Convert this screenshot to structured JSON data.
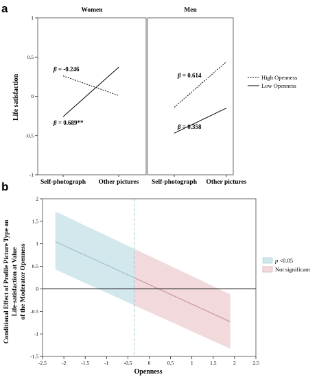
{
  "chart_data": [
    {
      "panel": "a",
      "type": "line",
      "facets": [
        {
          "title": "Women",
          "series": [
            {
              "name": "High Openness",
              "values": [
                0.26,
                0.01
              ]
            },
            {
              "name": "Low Openness",
              "values": [
                -0.26,
                0.37
              ]
            }
          ],
          "annotations": [
            {
              "text": "β = -0.246",
              "series": "High Openness",
              "coef": "-0.246"
            },
            {
              "text": "β = 0.689**",
              "series": "Low Openness",
              "coef": "0.689**"
            }
          ]
        },
        {
          "title": "Men",
          "series": [
            {
              "name": "High Openness",
              "values": [
                -0.14,
                0.44
              ]
            },
            {
              "name": "Low Openness",
              "values": [
                -0.47,
                -0.15
              ]
            }
          ],
          "annotations": [
            {
              "text": "β = 0.614",
              "series": "High Openness",
              "coef": "0.614"
            },
            {
              "text": "β = 0.358",
              "series": "Low Openness",
              "coef": "0.358"
            }
          ]
        }
      ],
      "categories": [
        "Self-photograph",
        "Other pictures"
      ],
      "ylabel": "Life satisfaction",
      "ylim": [
        -1,
        1
      ],
      "yticks": [
        "1",
        "0.5",
        "0",
        "-0.5",
        "-1"
      ],
      "legend": [
        {
          "name": "High Openness",
          "style": "dotted"
        },
        {
          "name": "Low Openness",
          "style": "solid"
        }
      ],
      "legend_position": "right"
    },
    {
      "panel": "b",
      "type": "line",
      "xlabel": "Openness",
      "ylabel_lines": [
        "Conditional Effect  of Profile  Picture  Type on",
        "Life-satisfaction at Value",
        "of the Moderator Openness"
      ],
      "xlim": [
        -2.5,
        2.5
      ],
      "ylim": [
        -1.5,
        2
      ],
      "xticks": [
        "-2.5",
        "-2",
        "-1.5",
        "-1",
        "-0.5",
        "0",
        "0.5",
        "1",
        "1.5",
        "2",
        "2.5"
      ],
      "yticks": [
        "2",
        "1.5",
        "1",
        "0.5",
        "0",
        "-0.5",
        "-1",
        "-1.5"
      ],
      "effect_line": {
        "x": [
          -2.2,
          1.9
        ],
        "y": [
          1.05,
          -0.73
        ]
      },
      "ci_lower": {
        "x": [
          -2.2,
          1.9
        ],
        "y": [
          0.43,
          -1.33
        ]
      },
      "ci_upper": {
        "x": [
          -2.2,
          1.9
        ],
        "y": [
          1.72,
          -0.12
        ]
      },
      "threshold_x": -0.35,
      "regions": [
        {
          "name": "p <0.05",
          "color": "#d3e8ec",
          "line_color": "#9cc7cf"
        },
        {
          "name": "Not significant",
          "color": "#f1d9dc",
          "line_color": "#cf9ca3"
        }
      ],
      "zero_line": true,
      "legend_position": "right"
    }
  ],
  "labels": {
    "panel_a": "a",
    "panel_b": "b",
    "legend_high": "High Openness",
    "legend_low": "Low Openness",
    "legend_sig_p": "p",
    "legend_sig_rest": " <0.05",
    "legend_ns": "Not significant"
  }
}
